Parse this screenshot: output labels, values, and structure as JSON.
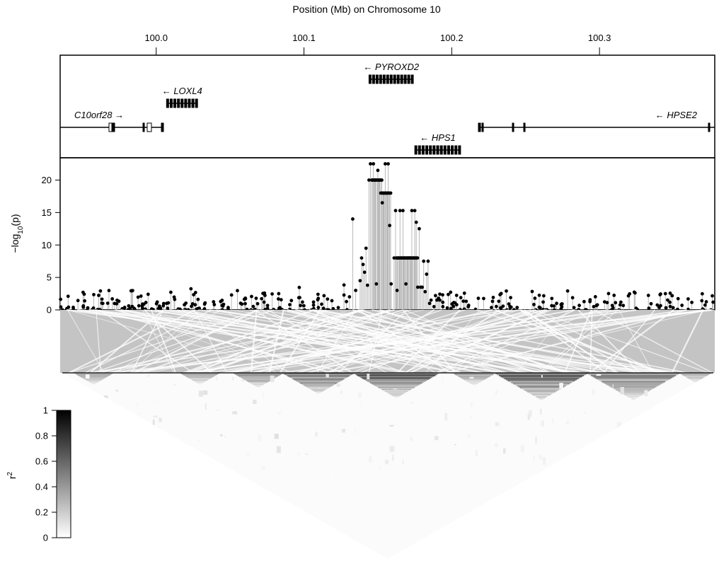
{
  "chart_data": {
    "type": "scatter",
    "title": "Position (Mb) on Chromosome 10",
    "x_axis": {
      "label": "Position (Mb) on Chromosome 10",
      "ticks": [
        "100.0",
        "100.1",
        "100.2",
        "100.3"
      ],
      "tick_values": [
        100.0,
        100.1,
        100.2,
        100.3
      ],
      "range": [
        99.935,
        100.378
      ]
    },
    "y_axis": {
      "label_main": "−log",
      "label_sub": "10",
      "label_tail": "(p)",
      "ticks": [
        "0",
        "5",
        "10",
        "15",
        "20"
      ],
      "tick_values": [
        0,
        5,
        10,
        15,
        20
      ],
      "range": [
        0,
        23
      ]
    },
    "genes": [
      {
        "name": "LOXL4",
        "label": "← LOXL4",
        "start": 100.007,
        "end": 100.028,
        "row": 1,
        "strand": "-"
      },
      {
        "name": "C10orf28",
        "label": "C10orf28 →",
        "start": 99.935,
        "end": 100.003,
        "row": 2,
        "strand": "+"
      },
      {
        "name": "PYROXD2",
        "label": "← PYROXD2",
        "start": 100.144,
        "end": 100.174,
        "row": 0,
        "strand": "-"
      },
      {
        "name": "HPS1",
        "label": "← HPS1",
        "start": 100.175,
        "end": 100.206,
        "row": 3,
        "strand": "-"
      },
      {
        "name": "HPSE2",
        "label": "← HPSE2",
        "start": 100.218,
        "end": 100.378,
        "row": 2,
        "strand": "-"
      }
    ],
    "peak_points": [
      {
        "x": 100.133,
        "y": 14.0
      },
      {
        "x": 100.135,
        "y": 3.0
      },
      {
        "x": 100.138,
        "y": 4.5
      },
      {
        "x": 100.139,
        "y": 8.0
      },
      {
        "x": 100.14,
        "y": 7.0
      },
      {
        "x": 100.141,
        "y": 5.8
      },
      {
        "x": 100.142,
        "y": 9.5
      },
      {
        "x": 100.143,
        "y": 3.8
      },
      {
        "x": 100.144,
        "y": 20.0
      },
      {
        "x": 100.145,
        "y": 22.5
      },
      {
        "x": 100.146,
        "y": 20.0
      },
      {
        "x": 100.147,
        "y": 22.5
      },
      {
        "x": 100.148,
        "y": 20.0
      },
      {
        "x": 100.149,
        "y": 4.0
      },
      {
        "x": 100.15,
        "y": 21.5
      },
      {
        "x": 100.151,
        "y": 20.0
      },
      {
        "x": 100.152,
        "y": 18.0
      },
      {
        "x": 100.153,
        "y": 16.5
      },
      {
        "x": 100.154,
        "y": 18.0
      },
      {
        "x": 100.155,
        "y": 22.5
      },
      {
        "x": 100.156,
        "y": 18.0
      },
      {
        "x": 100.157,
        "y": 22.5
      },
      {
        "x": 100.158,
        "y": 13.0
      },
      {
        "x": 100.159,
        "y": 4.0
      },
      {
        "x": 100.161,
        "y": 8.0
      },
      {
        "x": 100.162,
        "y": 15.3
      },
      {
        "x": 100.163,
        "y": 3.0
      },
      {
        "x": 100.164,
        "y": 8.0
      },
      {
        "x": 100.165,
        "y": 15.3
      },
      {
        "x": 100.166,
        "y": 8.0
      },
      {
        "x": 100.167,
        "y": 15.3
      },
      {
        "x": 100.168,
        "y": 8.0
      },
      {
        "x": 100.169,
        "y": 4.0
      },
      {
        "x": 100.17,
        "y": 8.0
      },
      {
        "x": 100.171,
        "y": 8.0
      },
      {
        "x": 100.172,
        "y": 8.0
      },
      {
        "x": 100.173,
        "y": 15.3
      },
      {
        "x": 100.174,
        "y": 8.0
      },
      {
        "x": 100.175,
        "y": 15.3
      },
      {
        "x": 100.176,
        "y": 13.5
      },
      {
        "x": 100.177,
        "y": 3.5
      },
      {
        "x": 100.178,
        "y": 12.5
      },
      {
        "x": 100.179,
        "y": 3.5
      },
      {
        "x": 100.18,
        "y": 3.5
      },
      {
        "x": 100.181,
        "y": 7.5
      },
      {
        "x": 100.182,
        "y": 2.8
      },
      {
        "x": 100.183,
        "y": 5.5
      },
      {
        "x": 100.184,
        "y": 7.5
      },
      {
        "x": 100.185,
        "y": 1.0
      },
      {
        "x": 100.186,
        "y": 1.5
      },
      {
        "x": 100.188,
        "y": 0.5
      },
      {
        "x": 100.189,
        "y": 2.2
      },
      {
        "x": 100.19,
        "y": 1.5
      },
      {
        "x": 100.191,
        "y": 1.8
      },
      {
        "x": 100.192,
        "y": 1.5
      },
      {
        "x": 100.194,
        "y": 0.5
      },
      {
        "x": 100.197,
        "y": 0.3
      }
    ],
    "background_range": [
      0,
      4
    ],
    "ld_colorbar": {
      "label_main": "r",
      "label_sup": "2",
      "ticks": [
        "0",
        "0.2",
        "0.4",
        "0.6",
        "0.8",
        "1"
      ],
      "tick_values": [
        0,
        0.2,
        0.4,
        0.6,
        0.8,
        1
      ]
    }
  }
}
